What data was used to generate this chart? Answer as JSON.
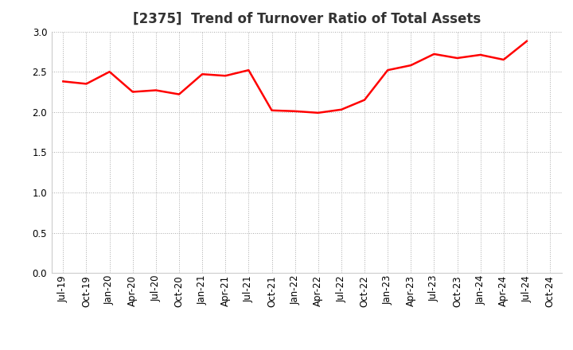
{
  "title": "[2375]  Trend of Turnover Ratio of Total Assets",
  "x_labels": [
    "Jul-19",
    "Oct-19",
    "Jan-20",
    "Apr-20",
    "Jul-20",
    "Oct-20",
    "Jan-21",
    "Apr-21",
    "Jul-21",
    "Oct-21",
    "Jan-22",
    "Apr-22",
    "Jul-22",
    "Oct-22",
    "Jan-23",
    "Apr-23",
    "Jul-23",
    "Oct-23",
    "Jan-24",
    "Apr-24",
    "Jul-24",
    "Oct-24"
  ],
  "y_values": [
    2.38,
    2.35,
    2.5,
    2.25,
    2.27,
    2.22,
    2.47,
    2.45,
    2.52,
    2.02,
    2.01,
    1.99,
    2.03,
    2.15,
    2.52,
    2.58,
    2.72,
    2.67,
    2.71,
    2.65,
    2.88,
    null
  ],
  "line_color": "#FF0000",
  "line_width": 1.8,
  "ylim": [
    0.0,
    3.0
  ],
  "yticks": [
    0.0,
    0.5,
    1.0,
    1.5,
    2.0,
    2.5,
    3.0
  ],
  "grid_color": "#aaaaaa",
  "background_color": "#ffffff",
  "title_fontsize": 12,
  "tick_fontsize": 8.5
}
